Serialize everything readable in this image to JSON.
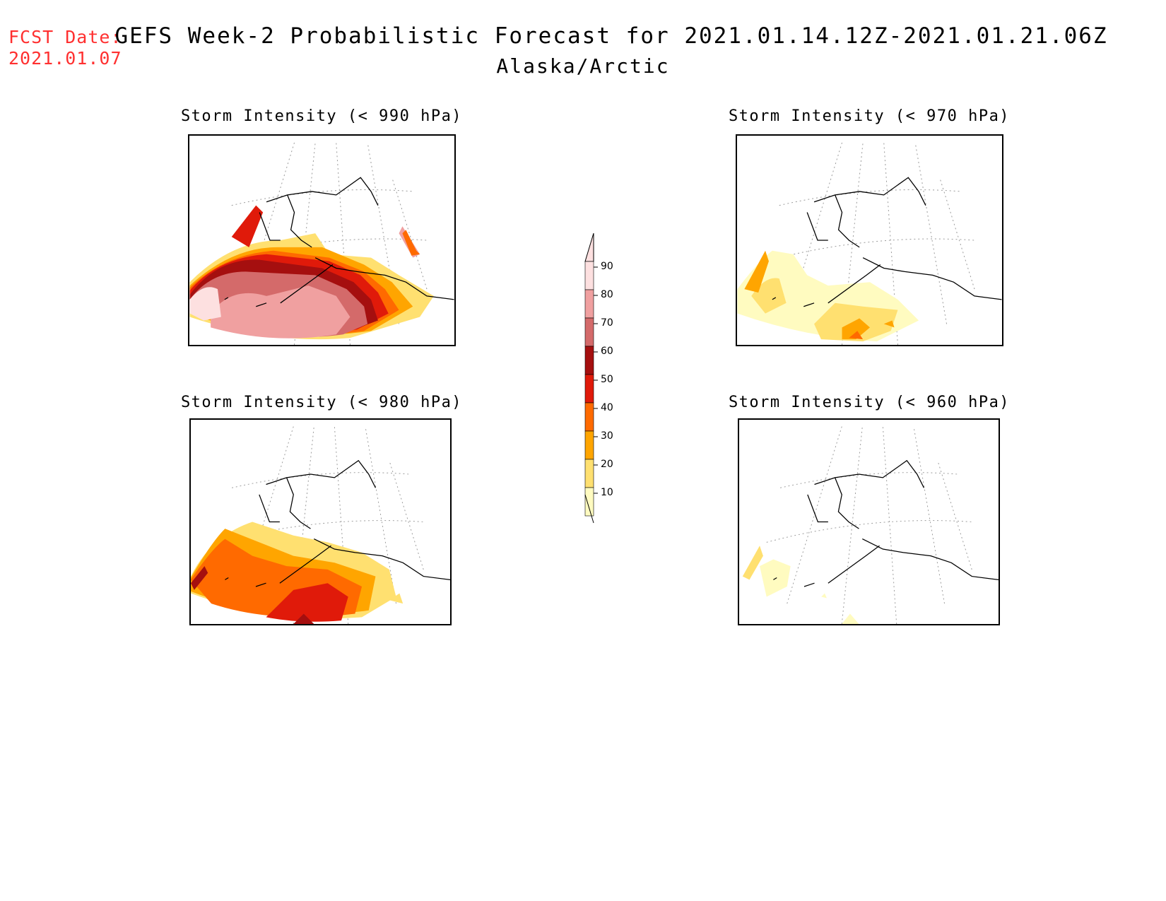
{
  "header": {
    "fcst_label": "FCST Date:",
    "fcst_date": "2021.01.07",
    "title": "GEFS Week-2 Probabilistic Forecast for 2021.01.14.12Z-2021.01.21.06Z",
    "subtitle": "Alaska/Arctic"
  },
  "panels": [
    {
      "id": "p990",
      "title": "Storm Intensity (< 990 hPa)"
    },
    {
      "id": "p970",
      "title": "Storm Intensity (< 970 hPa)"
    },
    {
      "id": "p980",
      "title": "Storm Intensity (< 980 hPa)"
    },
    {
      "id": "p960",
      "title": "Storm Intensity (< 960 hPa)"
    }
  ],
  "legend": {
    "levels": [
      "90",
      "80",
      "70",
      "60",
      "50",
      "40",
      "30",
      "20",
      "10"
    ],
    "colors": {
      "c90": "#fde0e0",
      "c80": "#f0a0a0",
      "c70": "#d46a6a",
      "c60": "#a50f0f",
      "c50": "#e01a0a",
      "c40": "#ff6a00",
      "c30": "#ffa500",
      "c20": "#ffe070",
      "c10": "#fffbc0"
    }
  }
}
